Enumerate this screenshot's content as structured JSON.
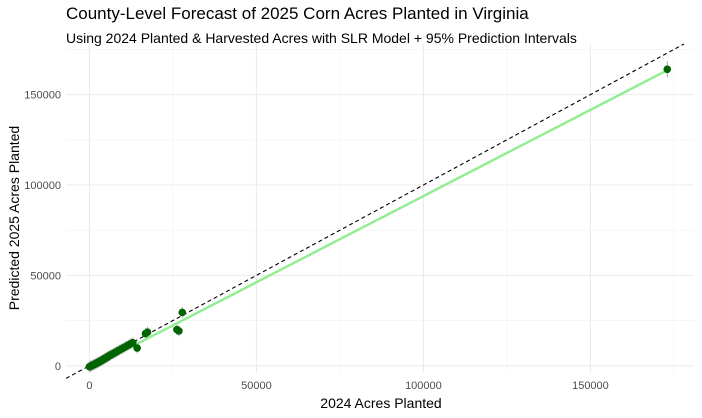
{
  "chart_data": {
    "type": "scatter",
    "title": "County-Level Forecast of 2025 Corn Acres Planted in Virginia",
    "subtitle": "Using 2024 Planted & Harvested Acres with SLR Model + 95% Prediction Intervals",
    "xlabel": "2024 Acres Planted",
    "ylabel": "Predicted 2025 Acres Planted",
    "xlim": [
      -7000,
      181000
    ],
    "ylim": [
      -4000,
      178000
    ],
    "x_ticks": [
      0,
      50000,
      100000,
      150000
    ],
    "y_ticks": [
      0,
      50000,
      100000,
      150000
    ],
    "grid": true,
    "reference_line": {
      "style": "dashed",
      "slope": 1,
      "intercept": 0,
      "color": "#000000"
    },
    "fit_line": {
      "x": [
        0,
        173000
      ],
      "y": [
        -1500,
        163500
      ],
      "color": "#90ee90"
    },
    "point_color": "#006400",
    "errorbar_color": "#a9a9a9",
    "points": [
      {
        "x": 0,
        "y": -500,
        "lo": -3500,
        "hi": 2500
      },
      {
        "x": 300,
        "y": -300,
        "lo": -3300,
        "hi": 2700
      },
      {
        "x": 600,
        "y": 0,
        "lo": -3000,
        "hi": 3000
      },
      {
        "x": 900,
        "y": 300,
        "lo": -2700,
        "hi": 3300
      },
      {
        "x": 1200,
        "y": 500,
        "lo": -2500,
        "hi": 3500
      },
      {
        "x": 1500,
        "y": 800,
        "lo": -2200,
        "hi": 3800
      },
      {
        "x": 1800,
        "y": 1000,
        "lo": -2000,
        "hi": 4000
      },
      {
        "x": 2100,
        "y": 1400,
        "lo": -1600,
        "hi": 4400
      },
      {
        "x": 2400,
        "y": 1700,
        "lo": -1300,
        "hi": 4700
      },
      {
        "x": 2700,
        "y": 1900,
        "lo": -1100,
        "hi": 4900
      },
      {
        "x": 3000,
        "y": 2300,
        "lo": -700,
        "hi": 5300
      },
      {
        "x": 3300,
        "y": 2500,
        "lo": -500,
        "hi": 5500
      },
      {
        "x": 3600,
        "y": 2900,
        "lo": -100,
        "hi": 5900
      },
      {
        "x": 3900,
        "y": 3200,
        "lo": 200,
        "hi": 6200
      },
      {
        "x": 4200,
        "y": 3500,
        "lo": 500,
        "hi": 6500
      },
      {
        "x": 4500,
        "y": 3900,
        "lo": 900,
        "hi": 6900
      },
      {
        "x": 4800,
        "y": 4200,
        "lo": 1200,
        "hi": 7200
      },
      {
        "x": 5100,
        "y": 4500,
        "lo": 1500,
        "hi": 7500
      },
      {
        "x": 5400,
        "y": 4900,
        "lo": 1900,
        "hi": 7900
      },
      {
        "x": 5700,
        "y": 5200,
        "lo": 2200,
        "hi": 8200
      },
      {
        "x": 6000,
        "y": 5600,
        "lo": 2600,
        "hi": 8600
      },
      {
        "x": 6400,
        "y": 6000,
        "lo": 3000,
        "hi": 9000
      },
      {
        "x": 6800,
        "y": 6400,
        "lo": 3400,
        "hi": 9400
      },
      {
        "x": 7200,
        "y": 6800,
        "lo": 3800,
        "hi": 9800
      },
      {
        "x": 7600,
        "y": 7200,
        "lo": 4200,
        "hi": 10200
      },
      {
        "x": 8000,
        "y": 7600,
        "lo": 4600,
        "hi": 10600
      },
      {
        "x": 8500,
        "y": 8200,
        "lo": 5200,
        "hi": 11200
      },
      {
        "x": 9000,
        "y": 8700,
        "lo": 5700,
        "hi": 11700
      },
      {
        "x": 9500,
        "y": 9200,
        "lo": 6200,
        "hi": 12200
      },
      {
        "x": 10000,
        "y": 9700,
        "lo": 6700,
        "hi": 12700
      },
      {
        "x": 10600,
        "y": 10300,
        "lo": 7300,
        "hi": 13300
      },
      {
        "x": 11200,
        "y": 11000,
        "lo": 8000,
        "hi": 14000
      },
      {
        "x": 11800,
        "y": 11600,
        "lo": 8600,
        "hi": 14600
      },
      {
        "x": 12400,
        "y": 12200,
        "lo": 9200,
        "hi": 15200
      },
      {
        "x": 13000,
        "y": 12800,
        "lo": 9800,
        "hi": 15800
      },
      {
        "x": 14300,
        "y": 9800,
        "lo": 6800,
        "hi": 12800
      },
      {
        "x": 16800,
        "y": 17800,
        "lo": 14800,
        "hi": 20800
      },
      {
        "x": 17400,
        "y": 18600,
        "lo": 15600,
        "hi": 21600
      },
      {
        "x": 26200,
        "y": 20000,
        "lo": 17000,
        "hi": 23000
      },
      {
        "x": 26800,
        "y": 19300,
        "lo": 16300,
        "hi": 22300
      },
      {
        "x": 27800,
        "y": 29500,
        "lo": 26500,
        "hi": 32500
      },
      {
        "x": 173000,
        "y": 164000,
        "lo": 159500,
        "hi": 168500
      }
    ]
  }
}
